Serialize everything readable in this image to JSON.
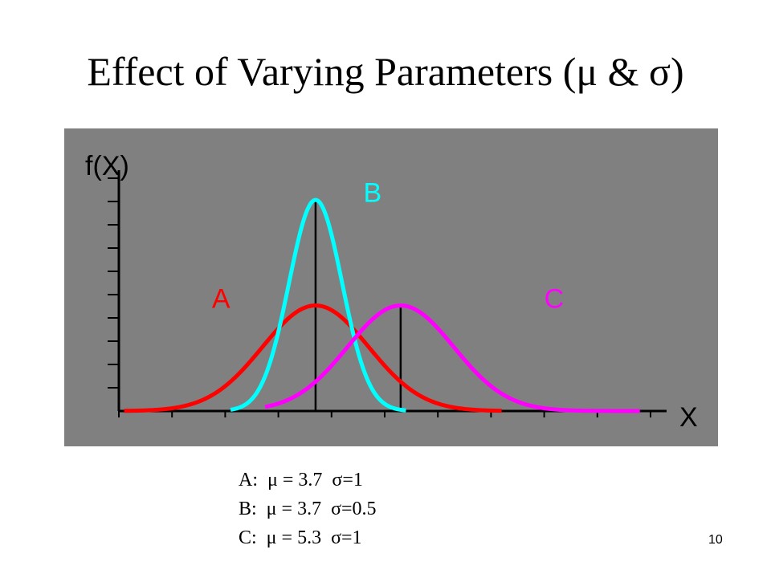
{
  "slide": {
    "title": "Effect of Varying Parameters (μ & σ)",
    "page_number": "10"
  },
  "legend_lines": [
    "A:  μ = 3.7  σ=1",
    "B:  μ = 3.7  σ=0.5",
    "C:  μ = 5.3  σ=1"
  ],
  "chart_data": {
    "type": "line",
    "title": "",
    "xlabel": "X",
    "ylabel": "f(X)",
    "x_range": [
      0,
      10
    ],
    "y_range": [
      0,
      0.88
    ],
    "grid": false,
    "background_color": "#808080",
    "series": [
      {
        "name": "A",
        "mu": 3.7,
        "sigma": 1.0,
        "color": "#ff0000",
        "x_from": 0.1,
        "x_to": 7.2
      },
      {
        "name": "B",
        "mu": 3.7,
        "sigma": 0.5,
        "color": "#00ffff",
        "x_from": 2.1,
        "x_to": 5.4
      },
      {
        "name": "C",
        "mu": 5.3,
        "sigma": 1.0,
        "color": "#ff00ff",
        "x_from": 2.75,
        "x_to": 9.8
      }
    ],
    "mean_lines": [
      3.7,
      5.3
    ],
    "x_tick_count": 11,
    "y_tick_count": 10
  }
}
